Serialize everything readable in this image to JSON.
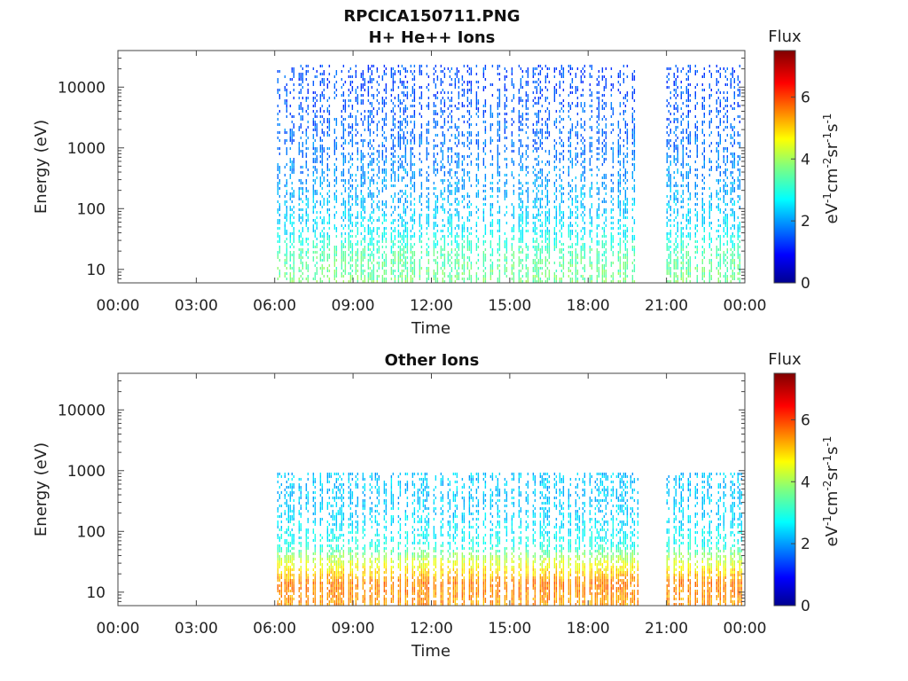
{
  "figure": {
    "title_line1": "RPCICA150711.PNG"
  },
  "chart_data": [
    {
      "type": "heatmap",
      "title": "H+ He++ Ions",
      "xlabel": "Time",
      "ylabel": "Energy (eV)",
      "x_ticks": [
        "00:00",
        "03:00",
        "06:00",
        "09:00",
        "12:00",
        "15:00",
        "18:00",
        "21:00",
        "00:00"
      ],
      "x_range_hours": [
        0,
        24
      ],
      "y_scale": "log",
      "y_ticks": [
        10,
        100,
        1000,
        10000
      ],
      "y_tick_labels": [
        "10",
        "100",
        "1000",
        "10000"
      ],
      "y_range": [
        6,
        40000
      ],
      "colorbar": {
        "label": "Flux",
        "unit_label": "eV-1cm-2sr-1s-1",
        "ticks": [
          "0",
          "2",
          "4",
          "6"
        ],
        "range": [
          0,
          7.5
        ],
        "colormap": "jet"
      },
      "data_coverage_hours": [
        [
          6.1,
          19.9
        ],
        [
          21.0,
          23.9
        ]
      ],
      "energy_flux_profile": [
        {
          "energy_eV": 6,
          "flux": 3.7
        },
        {
          "energy_eV": 20,
          "flux": 3.4
        },
        {
          "energy_eV": 40,
          "flux": 2.8
        },
        {
          "energy_eV": 100,
          "flux": 2.4
        },
        {
          "energy_eV": 300,
          "flux": 2.1
        },
        {
          "energy_eV": 1000,
          "flux": 1.8
        },
        {
          "energy_eV": 5000,
          "flux": 1.6
        },
        {
          "energy_eV": 20000,
          "flux": 1.5
        }
      ],
      "max_energy_eV": 25000
    },
    {
      "type": "heatmap",
      "title": "Other Ions",
      "xlabel": "Time",
      "ylabel": "Energy (eV)",
      "x_ticks": [
        "00:00",
        "03:00",
        "06:00",
        "09:00",
        "12:00",
        "15:00",
        "18:00",
        "21:00",
        "00:00"
      ],
      "x_range_hours": [
        0,
        24
      ],
      "y_scale": "log",
      "y_ticks": [
        10,
        100,
        1000,
        10000
      ],
      "y_tick_labels": [
        "10",
        "100",
        "1000",
        "10000"
      ],
      "y_range": [
        6,
        40000
      ],
      "colorbar": {
        "label": "Flux",
        "unit_label": "eV-1cm-2sr-1s-1",
        "ticks": [
          "0",
          "2",
          "4",
          "6"
        ],
        "range": [
          0,
          7.5
        ],
        "colormap": "jet"
      },
      "data_coverage_hours": [
        [
          6.1,
          19.9
        ],
        [
          21.0,
          23.9
        ]
      ],
      "energy_flux_profile": [
        {
          "energy_eV": 6,
          "flux": 5.4
        },
        {
          "energy_eV": 15,
          "flux": 5.6
        },
        {
          "energy_eV": 35,
          "flux": 4.3
        },
        {
          "energy_eV": 60,
          "flux": 3.0
        },
        {
          "energy_eV": 150,
          "flux": 2.6
        },
        {
          "energy_eV": 300,
          "flux": 2.4
        }
      ],
      "max_energy_eV": 1000
    }
  ]
}
